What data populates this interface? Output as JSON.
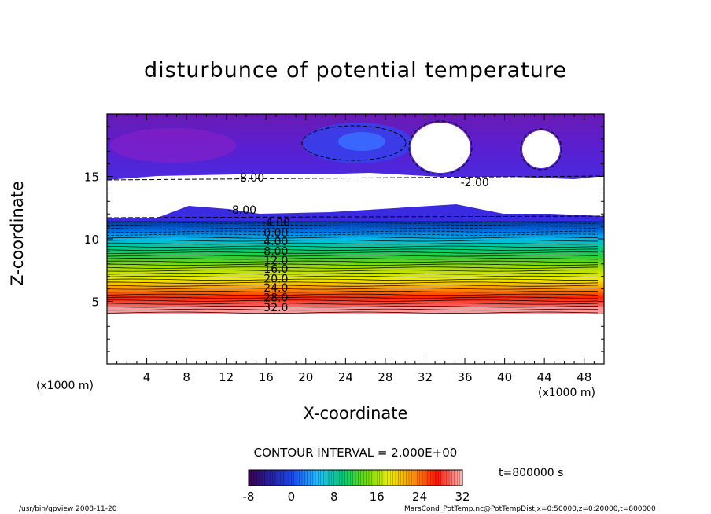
{
  "chart_data": {
    "type": "heatmap",
    "title": "disturbunce of potential temperature",
    "xlabel": "X-coordinate",
    "ylabel": "Z-coordinate",
    "x_unit_left": "(x1000 m)",
    "x_unit_right": "(x1000 m)",
    "xlim": [
      0,
      50
    ],
    "ylim": [
      0,
      20
    ],
    "xticks": [
      4,
      8,
      12,
      16,
      20,
      24,
      28,
      32,
      36,
      40,
      44,
      48
    ],
    "yticks": [
      5,
      10,
      15
    ],
    "contour_interval_text": "CONTOUR INTERVAL = 2.000E+00",
    "colorbar": {
      "min": -8,
      "max": 32,
      "ticks": [
        -8,
        0,
        8,
        16,
        24,
        32
      ]
    },
    "contour_labels": [
      {
        "text": "-8.00",
        "x": 14.4,
        "z": 14.6
      },
      {
        "text": "-8.00",
        "x": 13.6,
        "z": 12.0
      },
      {
        "text": "-2.00",
        "x": 37.0,
        "z": 14.2
      },
      {
        "text": "-4.00",
        "x": 17.0,
        "z": 11.0
      },
      {
        "text": "0.00",
        "x": 17.0,
        "z": 10.2
      },
      {
        "text": "4.00",
        "x": 17.0,
        "z": 9.5
      },
      {
        "text": "8.00",
        "x": 17.0,
        "z": 8.7
      },
      {
        "text": "12.0",
        "x": 17.0,
        "z": 8.0
      },
      {
        "text": "16.0",
        "x": 17.0,
        "z": 7.3
      },
      {
        "text": "20.0",
        "x": 17.0,
        "z": 6.5
      },
      {
        "text": "24.0",
        "x": 17.0,
        "z": 5.8
      },
      {
        "text": "28.0",
        "x": 17.0,
        "z": 5.0
      },
      {
        "text": "32.0",
        "x": 17.0,
        "z": 4.2
      }
    ],
    "time_label": "t=800000 s"
  },
  "footer": {
    "left": "/usr/bin/gpview   2008-11-20",
    "right": "MarsCond_PotTemp.nc@PotTempDist,x=0:50000,z=0:20000,t=800000"
  }
}
